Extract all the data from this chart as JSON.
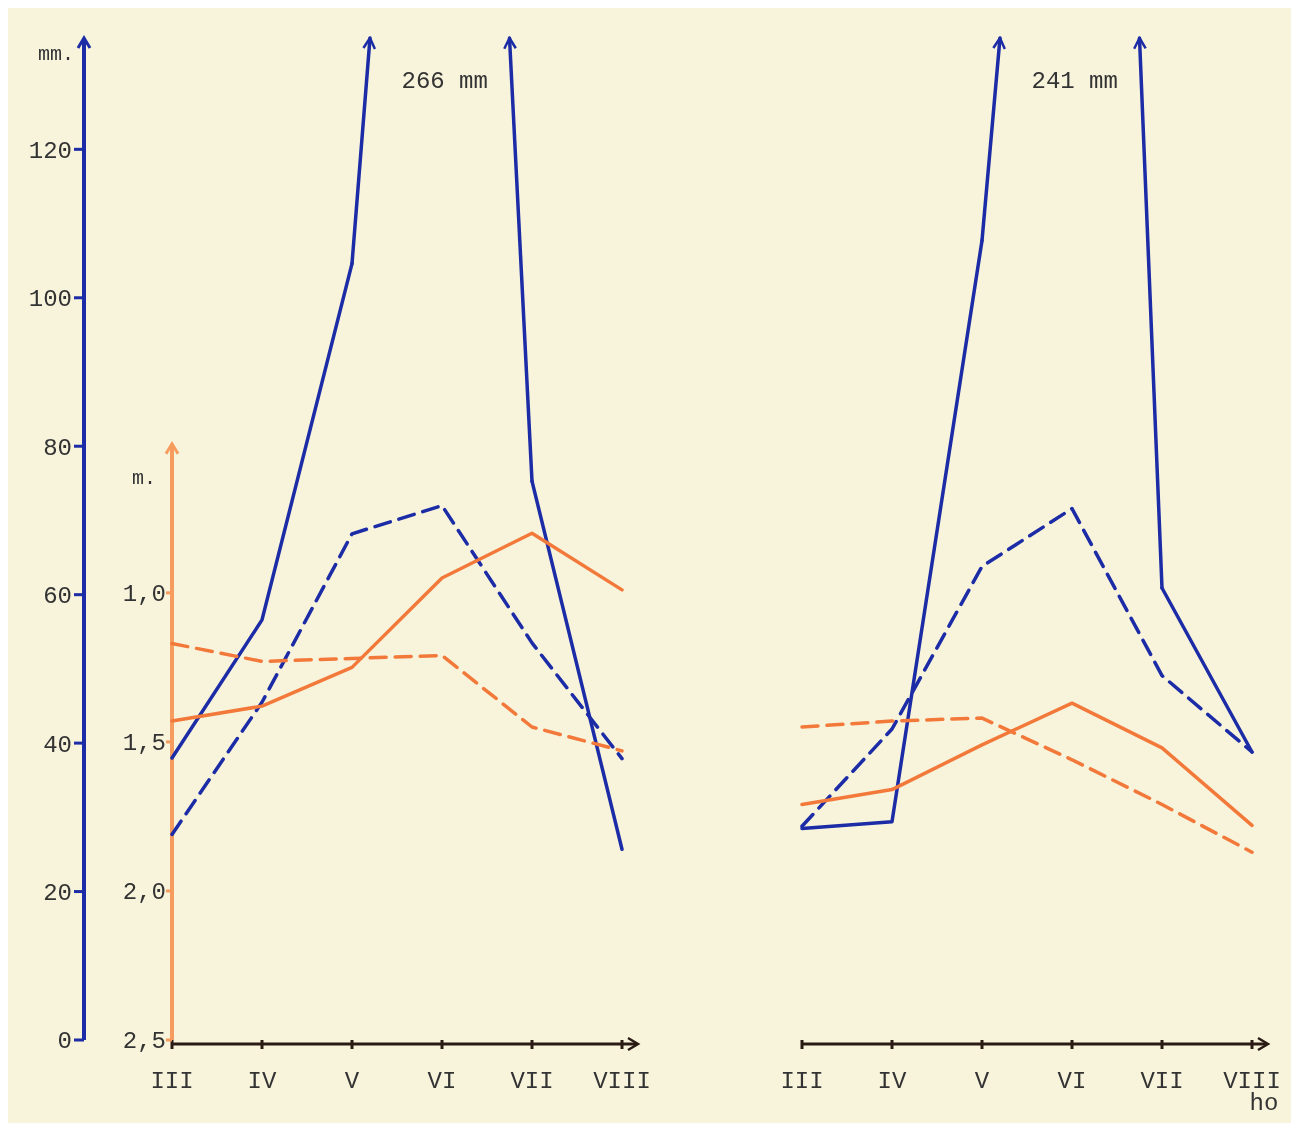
{
  "chart_data": {
    "type": "line",
    "ylabel": "mm.",
    "y2label": "m.",
    "xlabel": "ho",
    "categories": [
      "III",
      "IV",
      "V",
      "VI",
      "VII",
      "VIII",
      null,
      "III",
      "IV",
      "V",
      "VI",
      "VII",
      "VIII"
    ],
    "ylim": [
      0,
      135
    ],
    "yticks": [
      0,
      20,
      40,
      60,
      80,
      100,
      120
    ],
    "y2lim": [
      2.5,
      0.5
    ],
    "y2ticks": [
      {
        "value": 1,
        "label": "1,0"
      },
      {
        "value": 1.5,
        "label": "1,5"
      },
      {
        "value": 2,
        "label": "2,0"
      },
      {
        "value": 2.5,
        "label": "2,5"
      }
    ],
    "series": [
      {
        "color": "#1c2ba6",
        "line_style": "solid",
        "values": [
          38,
          56.6,
          104.6,
          null,
          75.3,
          25.7,
          null,
          28.5,
          29.4,
          107.7,
          null,
          60.9,
          38.8
        ]
      },
      {
        "color": "#1c2ba6",
        "line_style": "dashed",
        "values": [
          27.7,
          45.5,
          68.2,
          72,
          53.5,
          37.9,
          null,
          28.8,
          41.9,
          63.8,
          71.6,
          49.1,
          38.8
        ]
      },
      {
        "color": "#f2793a",
        "line_style": "solid",
        "axis": "y2",
        "values": [
          1.43,
          1.38,
          1.25,
          0.95,
          0.8,
          0.99,
          null,
          1.71,
          1.66,
          1.51,
          1.37,
          1.52,
          1.78
        ]
      },
      {
        "color": "#f2793a",
        "line_style": "dashed",
        "axis": "y2",
        "values": [
          1.17,
          1.23,
          1.22,
          1.21,
          1.45,
          1.53,
          null,
          1.45,
          1.43,
          1.42,
          1.56,
          1.71,
          1.87
        ]
      }
    ],
    "annotations": [
      "266 mm",
      "241 mm"
    ]
  }
}
